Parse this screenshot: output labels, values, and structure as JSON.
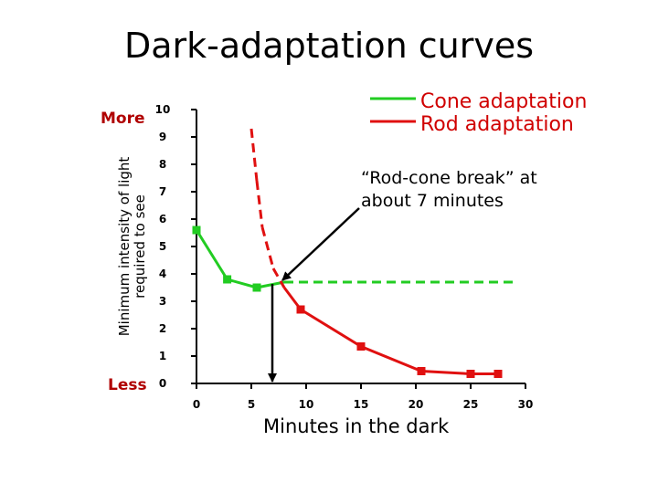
{
  "chart_data": {
    "type": "line",
    "title": "Dark-adaptation curves",
    "xlabel": "Minutes in the dark",
    "ylabel_lines": [
      "Minimum intensity of light",
      "required to see"
    ],
    "y_top_label": "More",
    "y_bottom_label": "Less",
    "xlim": [
      0,
      30
    ],
    "ylim": [
      0,
      10
    ],
    "x_ticks": [
      0,
      5,
      10,
      15,
      20,
      25,
      30
    ],
    "y_ticks": [
      0,
      1,
      2,
      3,
      4,
      5,
      6,
      7,
      8,
      9,
      10
    ],
    "grid": false,
    "legend_position": "top-right",
    "series": [
      {
        "name": "Cone adaptation",
        "color": "#22cc22",
        "x": [
          0,
          2.8,
          5.5,
          8,
          29
        ],
        "y": [
          5.6,
          3.8,
          3.5,
          3.7,
          3.7
        ],
        "markers_x": [
          0,
          2.8,
          5.5
        ],
        "dashed_from_x": 8
      },
      {
        "name": "Rod adaptation",
        "color": "#e01010",
        "x": [
          5,
          5.5,
          6,
          7,
          8,
          9.5,
          15,
          20.5,
          25,
          27.5
        ],
        "y": [
          9.3,
          7.4,
          5.7,
          4.2,
          3.5,
          2.7,
          1.35,
          0.45,
          0.35,
          0.35
        ],
        "markers_x": [
          9.5,
          15,
          20.5,
          25,
          27.5
        ],
        "dashed_until_x": 8
      }
    ],
    "annotation": {
      "lines": [
        "“Rod-cone break” at",
        "about 7 minutes"
      ],
      "x": 7.5,
      "y": 3.7
    }
  }
}
